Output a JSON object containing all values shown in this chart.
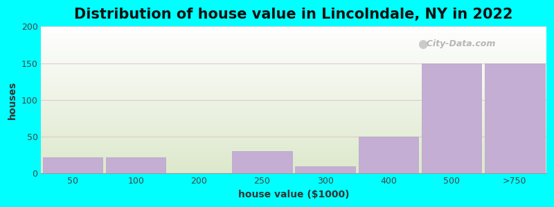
{
  "title": "Distribution of house value in Lincolndale, NY in 2022",
  "xlabel": "house value ($1000)",
  "ylabel": "houses",
  "categories": [
    "50",
    "100",
    "200",
    "250",
    "300",
    "400",
    "500",
    ">750"
  ],
  "values": [
    22,
    22,
    0,
    30,
    10,
    50,
    150,
    150
  ],
  "bar_color": "#C4AED4",
  "bar_edgecolor": "#B8A2C8",
  "ylim": [
    0,
    200
  ],
  "yticks": [
    0,
    50,
    100,
    150,
    200
  ],
  "bg_color": "#00FFFF",
  "plot_bg_top": "#FFFFFF",
  "plot_bg_bottom": "#DDE8CC",
  "grid_color": "#D8C0CC",
  "title_fontsize": 15,
  "axis_label_fontsize": 10,
  "tick_fontsize": 9,
  "watermark_text": "City-Data.com",
  "bar_width": 0.95
}
